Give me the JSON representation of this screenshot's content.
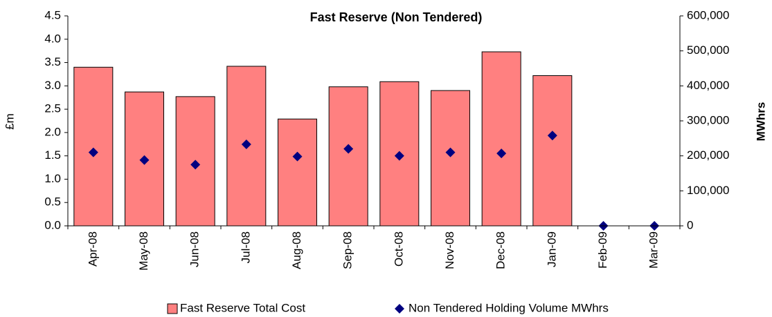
{
  "chart_data": {
    "type": "bar",
    "title": "Fast Reserve (Non Tendered)",
    "y_label": "£m",
    "y2_label": "MWhrs",
    "categories": [
      "Apr-08",
      "May-08",
      "Jun-08",
      "Jul-08",
      "Aug-08",
      "Sep-08",
      "Oct-08",
      "Nov-08",
      "Dec-08",
      "Jan-09",
      "Feb-09",
      "Mar-09"
    ],
    "series": [
      {
        "name": "Fast Reserve Total Cost",
        "type": "bar",
        "color": "#ff8080",
        "values": [
          3.4,
          2.87,
          2.77,
          3.42,
          2.29,
          2.98,
          3.09,
          2.9,
          3.73,
          3.22,
          0,
          0
        ]
      },
      {
        "name": "Non Tendered Holding Volume MWhrs",
        "type": "scatter",
        "axis": "y2",
        "color": "#000080",
        "values": [
          210000,
          188000,
          175000,
          233000,
          198000,
          220000,
          200000,
          210000,
          207000,
          258000,
          0,
          0
        ]
      }
    ],
    "ylim": [
      0,
      4.5
    ],
    "yticks": [
      {
        "value": 0,
        "label": "0.0"
      },
      0.5,
      {
        "value": 1,
        "label": "1.0"
      },
      1.5,
      {
        "value": 2,
        "label": "2.0"
      },
      2.5,
      {
        "value": 3,
        "label": "3.0"
      },
      3.5,
      {
        "value": 4,
        "label": "4.0"
      },
      4.5
    ],
    "y2lim": [
      0,
      600000
    ],
    "y2ticks": [
      0,
      {
        "value": 100000,
        "label": "100,000"
      },
      {
        "value": 200000,
        "label": "200,000"
      },
      {
        "value": 300000,
        "label": "300,000"
      },
      {
        "value": 400000,
        "label": "400,000"
      },
      {
        "value": 500000,
        "label": "500,000"
      },
      {
        "value": 600000,
        "label": "600,000"
      }
    ],
    "legend": "bottom",
    "grid": false
  }
}
